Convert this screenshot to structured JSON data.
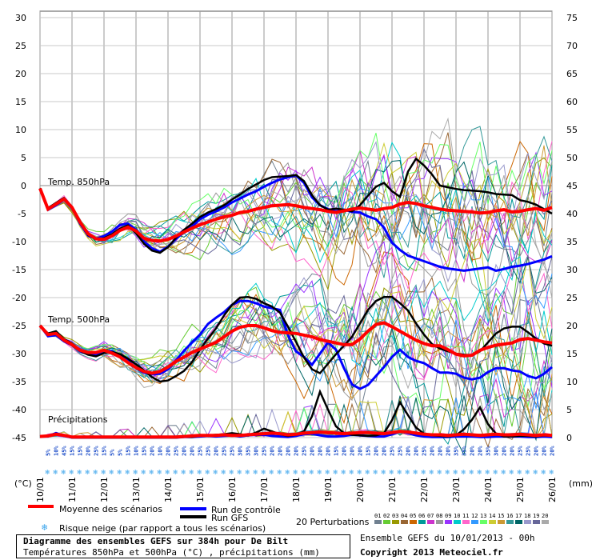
{
  "chart_data": {
    "type": "line",
    "title": "Diagramme des ensembles GEFS sur 384h pour De Bilt",
    "subtitle": "Températures 850hPa et 500hPa (°C) , précipitations (mm)",
    "left_axis": {
      "unit_label": "(°C)",
      "ticks": [
        "30",
        "25",
        "20",
        "15",
        "10",
        "5",
        "0",
        "-5",
        "-10",
        "-15",
        "-20",
        "-25",
        "-30",
        "-35",
        "-40",
        "-45"
      ]
    },
    "right_axis": {
      "unit_label": "(mm)",
      "ticks": [
        "75",
        "70",
        "65",
        "60",
        "55",
        "50",
        "45",
        "40",
        "35",
        "30",
        "25",
        "20",
        "15",
        "10",
        "5",
        "0"
      ]
    },
    "x_dates": [
      "10/01",
      "11/01",
      "12/01",
      "13/01",
      "14/01",
      "15/01",
      "16/01",
      "17/01",
      "18/01",
      "19/01",
      "20/01",
      "21/01",
      "22/01",
      "23/01",
      "24/01",
      "25/01",
      "26/01"
    ],
    "panel_labels": {
      "t850": "Temp. 850hPa",
      "t500": "Temp. 500hPa",
      "precip": "Précipitations"
    },
    "grid": true,
    "x_hours_step": 6,
    "t850": {
      "mean": [
        -0.5,
        -4.2,
        -3.3,
        -2.4,
        -3.9,
        -6.5,
        -8.6,
        -9.5,
        -9.6,
        -9.0,
        -8.0,
        -7.4,
        -8.1,
        -9.4,
        -9.8,
        -9.9,
        -9.6,
        -9.0,
        -8.3,
        -7.6,
        -7.0,
        -6.5,
        -6.0,
        -5.6,
        -5.3,
        -4.8,
        -4.6,
        -4.2,
        -3.9,
        -3.6,
        -3.5,
        -3.4,
        -3.6,
        -3.9,
        -4.1,
        -4.3,
        -4.6,
        -4.8,
        -4.5,
        -4.2,
        -4.0,
        -4.2,
        -4.4,
        -4.1,
        -3.9,
        -3.3,
        -3.0,
        -3.2,
        -3.6,
        -3.9,
        -4.2,
        -4.4,
        -4.5,
        -4.6,
        -4.7,
        -4.9,
        -4.8,
        -4.5,
        -4.3,
        -4.7,
        -4.6,
        -4.3,
        -4.1,
        -4.4,
        -3.9
      ],
      "control": [
        -0.5,
        -4.3,
        -3.5,
        -2.5,
        -4.0,
        -6.8,
        -8.9,
        -9.5,
        -9.0,
        -8.2,
        -7.0,
        -6.8,
        -7.9,
        -10.0,
        -11.2,
        -11.8,
        -10.9,
        -9.5,
        -8.3,
        -7.3,
        -6.0,
        -5.2,
        -4.6,
        -3.9,
        -3.0,
        -2.3,
        -1.6,
        -1.0,
        -0.2,
        0.5,
        1.1,
        1.5,
        1.8,
        0.5,
        -2.1,
        -3.5,
        -4.2,
        -4.6,
        -4.3,
        -4.7,
        -4.8,
        -5.5,
        -6.0,
        -7.5,
        -10.2,
        -11.5,
        -12.5,
        -13.0,
        -13.5,
        -14.0,
        -14.5,
        -14.8,
        -15.0,
        -15.2,
        -15.0,
        -14.8,
        -14.6,
        -15.2,
        -14.9,
        -14.5,
        -14.3,
        -14.0,
        -13.6,
        -13.2,
        -12.6
      ],
      "gfs": [
        -0.5,
        -4.0,
        -3.1,
        -2.2,
        -3.8,
        -6.6,
        -8.8,
        -9.6,
        -9.4,
        -8.7,
        -7.7,
        -7.1,
        -8.5,
        -10.4,
        -11.6,
        -12.0,
        -11.0,
        -9.3,
        -7.9,
        -6.8,
        -5.6,
        -4.8,
        -4.2,
        -3.5,
        -2.5,
        -1.6,
        -0.6,
        0.2,
        1.0,
        1.5,
        1.6,
        1.7,
        1.9,
        0.8,
        -1.7,
        -3.5,
        -4.3,
        -4.1,
        -4.3,
        -4.6,
        -3.5,
        -1.8,
        -0.2,
        0.5,
        -1.0,
        -2.0,
        2.5,
        4.8,
        3.6,
        2.0,
        0.0,
        -0.3,
        -0.6,
        -0.8,
        -0.9,
        -1.0,
        -1.2,
        -1.5,
        -1.6,
        -1.7,
        -2.6,
        -2.9,
        -3.4,
        -4.2,
        -5.0
      ]
    },
    "t500": {
      "mean": [
        -25.0,
        -26.6,
        -26.4,
        -27.6,
        -28.4,
        -29.4,
        -29.8,
        -29.8,
        -29.4,
        -29.9,
        -30.6,
        -31.6,
        -32.5,
        -33.2,
        -33.5,
        -33.2,
        -32.4,
        -31.4,
        -30.6,
        -29.8,
        -29.2,
        -28.6,
        -28.0,
        -27.0,
        -26.0,
        -25.3,
        -25.0,
        -25.0,
        -25.4,
        -25.9,
        -26.2,
        -26.3,
        -26.4,
        -26.7,
        -27.0,
        -27.5,
        -27.8,
        -28.1,
        -28.4,
        -28.4,
        -27.4,
        -26.0,
        -24.8,
        -24.5,
        -25.2,
        -26.0,
        -26.8,
        -27.6,
        -28.2,
        -28.6,
        -28.6,
        -29.3,
        -30.1,
        -30.4,
        -30.3,
        -29.4,
        -28.9,
        -28.5,
        -28.3,
        -28.1,
        -27.5,
        -27.3,
        -27.6,
        -27.9,
        -28.1
      ],
      "control": [
        -25.0,
        -26.9,
        -26.7,
        -27.8,
        -28.5,
        -29.6,
        -30.1,
        -30.3,
        -29.5,
        -29.6,
        -30.4,
        -31.3,
        -32.6,
        -33.4,
        -33.7,
        -33.6,
        -32.8,
        -31.2,
        -29.5,
        -28.0,
        -26.6,
        -24.7,
        -23.6,
        -22.6,
        -21.3,
        -20.6,
        -20.6,
        -21.0,
        -21.6,
        -21.9,
        -22.2,
        -26.7,
        -29.6,
        -30.6,
        -32.0,
        -30.0,
        -28.0,
        -29.3,
        -32.6,
        -35.5,
        -36.3,
        -35.6,
        -34.0,
        -32.4,
        -30.6,
        -29.3,
        -30.6,
        -31.3,
        -31.7,
        -32.6,
        -33.4,
        -33.4,
        -33.6,
        -34.3,
        -34.6,
        -34.3,
        -33.3,
        -32.6,
        -32.6,
        -33.0,
        -33.2,
        -34.0,
        -34.4,
        -33.6,
        -32.4
      ],
      "gfs": [
        -25.0,
        -26.4,
        -26.0,
        -27.4,
        -28.2,
        -29.5,
        -30.2,
        -30.5,
        -29.9,
        -29.7,
        -30.1,
        -30.9,
        -31.9,
        -33.0,
        -34.2,
        -35.0,
        -34.8,
        -34.0,
        -33.1,
        -31.5,
        -29.3,
        -27.3,
        -25.5,
        -23.2,
        -21.3,
        -20.0,
        -19.9,
        -20.2,
        -21.0,
        -21.6,
        -22.7,
        -25.2,
        -27.9,
        -30.7,
        -32.8,
        -33.5,
        -31.8,
        -30.1,
        -28.6,
        -27.0,
        -24.6,
        -22.2,
        -20.6,
        -19.9,
        -19.9,
        -21.0,
        -22.3,
        -24.6,
        -26.6,
        -28.3,
        -29.1,
        -29.6,
        -30.0,
        -30.2,
        -30.3,
        -29.6,
        -28.0,
        -26.4,
        -25.5,
        -25.2,
        -25.2,
        -26.2,
        -27.3,
        -28.2,
        -28.6
      ]
    },
    "precip_mm": {
      "mean": [
        0.2,
        0.3,
        0.6,
        0.4,
        0.1,
        0.1,
        0.1,
        0.1,
        0.1,
        0.1,
        0.1,
        0.1,
        0.1,
        0.1,
        0.1,
        0.1,
        0.1,
        0.1,
        0.2,
        0.3,
        0.4,
        0.4,
        0.4,
        0.5,
        0.4,
        0.4,
        0.5,
        0.6,
        0.7,
        0.8,
        0.7,
        0.5,
        0.6,
        0.8,
        0.9,
        1.0,
        0.9,
        0.8,
        0.7,
        0.8,
        0.9,
        0.9,
        0.8,
        0.7,
        0.9,
        1.1,
        1.0,
        0.8,
        0.6,
        0.5,
        0.5,
        0.4,
        0.5,
        0.6,
        0.5,
        0.4,
        0.5,
        0.6,
        0.5,
        0.5,
        0.6,
        0.5,
        0.4,
        0.5,
        0.4
      ],
      "control": [
        0.2,
        0.2,
        0.8,
        0.3,
        0.0,
        0.0,
        0.0,
        0.0,
        0.0,
        0.0,
        0.0,
        0.0,
        0.0,
        0.0,
        0.0,
        0.0,
        0.0,
        0.0,
        0.1,
        0.1,
        0.2,
        0.3,
        0.2,
        0.3,
        0.4,
        0.2,
        0.4,
        0.5,
        0.5,
        0.3,
        0.2,
        0.1,
        0.3,
        0.6,
        0.7,
        0.4,
        0.2,
        0.2,
        0.3,
        0.5,
        0.4,
        0.3,
        0.2,
        0.2,
        0.6,
        1.1,
        0.8,
        0.4,
        0.2,
        0.1,
        0.1,
        0.1,
        0.2,
        0.2,
        0.2,
        0.1,
        0.1,
        0.2,
        0.2,
        0.2,
        0.2,
        0.1,
        0.1,
        0.2,
        0.1
      ],
      "gfs": [
        0.2,
        0.3,
        0.7,
        0.4,
        0.0,
        0.0,
        0.0,
        0.0,
        0.0,
        0.0,
        0.0,
        0.0,
        0.0,
        0.0,
        0.0,
        0.0,
        0.0,
        0.0,
        0.1,
        0.1,
        0.3,
        0.4,
        0.5,
        0.6,
        0.8,
        0.6,
        0.4,
        0.9,
        1.6,
        1.1,
        0.6,
        0.3,
        0.5,
        1.1,
        3.8,
        8.2,
        5.0,
        2.0,
        0.8,
        0.5,
        0.4,
        0.3,
        0.4,
        0.8,
        3.1,
        6.3,
        4.0,
        1.8,
        0.7,
        0.4,
        0.3,
        0.2,
        0.4,
        1.5,
        3.2,
        5.4,
        2.4,
        0.7,
        0.2,
        0.2,
        0.3,
        0.3,
        0.2,
        0.4,
        0.3
      ]
    },
    "snow_risk": {
      "label": "Risque neige (par rapport a tous les scénarios)",
      "values": [
        "5%",
        "5%",
        "10%",
        "45%",
        "15%",
        "15%",
        "20%",
        "25%",
        "15%",
        "5%",
        "5%",
        "15%",
        "10%",
        "15%",
        "20%",
        "10%",
        "20%",
        "25%",
        "20%",
        "20%",
        "25%",
        "25%",
        "20%",
        "25%",
        "25%",
        "30%",
        "35%",
        "30%",
        "25%",
        "20%",
        "20%",
        "20%",
        "20%",
        "25%",
        "20%",
        "20%",
        "20%",
        "15%",
        "20%",
        "20%",
        "20%",
        "15%",
        "20%",
        "20%",
        "25%",
        "25%",
        "20%",
        "20%",
        "25%",
        "20%",
        "20%",
        "20%",
        "35%",
        "35%",
        "20%",
        "20%",
        "35%",
        "30%",
        "20%",
        "20%",
        "25%",
        "25%",
        "20%",
        "20%",
        "20%"
      ]
    },
    "legend": {
      "mean": "Moyenne des scénarios",
      "control": "Run de contrôle",
      "gfs": "Run GFS",
      "snow": "Risque neige (par rapport a tous les scénarios)",
      "perturbations": "20 Perturbations",
      "perturbation_ids": [
        "01",
        "02",
        "03",
        "04",
        "05",
        "06",
        "07",
        "08",
        "09",
        "10",
        "11",
        "12",
        "13",
        "14",
        "15",
        "16",
        "17",
        "18",
        "19",
        "20"
      ]
    },
    "colors": {
      "mean": "#ff0000",
      "control": "#0000ff",
      "gfs": "#000000",
      "snow": "#36a2eb",
      "perturbations": [
        "#708090",
        "#66cc33",
        "#999900",
        "#996633",
        "#cc6600",
        "#009999",
        "#cc33cc",
        "#999999",
        "#9933ff",
        "#00cccc",
        "#ff66cc",
        "#3399ff",
        "#66ff66",
        "#cccc33",
        "#cc9933",
        "#339999",
        "#006666",
        "#9999cc",
        "#666699",
        "#aaaaaa"
      ]
    }
  },
  "footer": {
    "title": "Diagramme des ensembles GEFS sur 384h pour De Bilt",
    "subtitle": "Températures 850hPa et 500hPa (°C) , précipitations (mm)",
    "run": "Ensemble GEFS du 10/01/2013 - 00h",
    "copyright": "Copyright 2013 Meteociel.fr"
  }
}
